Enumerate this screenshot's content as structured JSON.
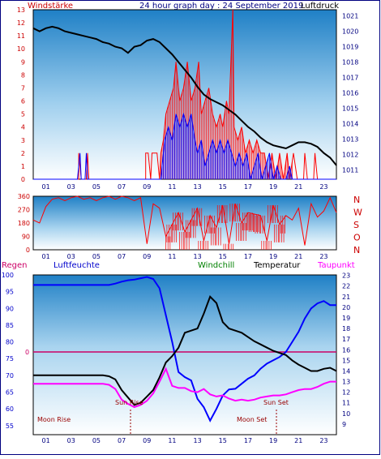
{
  "header": {
    "left_label": "Windstärke",
    "title": "24 hour graph day : 24 September 2019",
    "right_label": "Luftdruck"
  },
  "legend": {
    "regen": "Regen",
    "luftfeuchte": "Luftfeuchte",
    "windchill": "Windchill",
    "temperatur": "Temperatur",
    "taupunkt": "Taupunkt"
  },
  "markers": {
    "sunrise": "Sun Rise",
    "sunset": "Sun Set",
    "moonrise": "Moon Rise",
    "moonset": "Moon Set",
    "regen_zero": "0"
  },
  "colors": {
    "pressure": "#000000",
    "wind_gust": "#ff0000",
    "wind_speed": "#0000ff",
    "direction": "#ff0000",
    "temperature": "#000000",
    "humidity": "#0000ff",
    "dewpoint": "#ff00ff",
    "rain": "#cc0066",
    "label_red": "#cc0000",
    "label_green": "#008000",
    "label_blue": "#0000cc"
  },
  "chart_data": [
    {
      "type": "line",
      "name": "wind-pressure",
      "x_ticks": [
        "01",
        "03",
        "05",
        "07",
        "09",
        "11",
        "13",
        "15",
        "17",
        "19",
        "21",
        "23"
      ],
      "y_left_label": "Windstärke",
      "y_left_ticks": [
        "0",
        "1",
        "2",
        "3",
        "4",
        "5",
        "6",
        "7",
        "8",
        "9",
        "10",
        "11",
        "12",
        "13"
      ],
      "ylim_left": [
        0,
        13
      ],
      "y_right_label": "Luftdruck",
      "y_right_ticks": [
        "1011",
        "1012",
        "1013",
        "1014",
        "1015",
        "1016",
        "1017",
        "1018",
        "1019",
        "1020",
        "1021"
      ],
      "ylim_right": [
        1010.4,
        1021.4
      ],
      "pressure": {
        "x": [
          0,
          0.5,
          1,
          1.5,
          2,
          2.5,
          3,
          3.5,
          4,
          4.5,
          5,
          5.5,
          6,
          6.5,
          7,
          7.5,
          8,
          8.5,
          9,
          9.5,
          10,
          10.5,
          11,
          11.5,
          12,
          12.5,
          13,
          13.5,
          14,
          14.5,
          15,
          15.5,
          16,
          16.5,
          17,
          17.5,
          18,
          18.5,
          19,
          19.5,
          20,
          20.5,
          21,
          21.5,
          22,
          22.5,
          23,
          23.5,
          24
        ],
        "y": [
          1020.2,
          1020.0,
          1020.2,
          1020.3,
          1020.2,
          1020.0,
          1019.9,
          1019.8,
          1019.7,
          1019.6,
          1019.5,
          1019.3,
          1019.2,
          1019.0,
          1018.9,
          1018.6,
          1019.0,
          1019.1,
          1019.4,
          1019.5,
          1019.3,
          1018.9,
          1018.5,
          1018.0,
          1017.5,
          1017.0,
          1016.4,
          1015.9,
          1015.6,
          1015.4,
          1015.2,
          1014.9,
          1014.6,
          1014.2,
          1013.8,
          1013.5,
          1013.1,
          1012.8,
          1012.6,
          1012.5,
          1012.4,
          1012.6,
          1012.8,
          1012.8,
          1012.7,
          1012.5,
          1012.1,
          1011.8,
          1011.3
        ]
      },
      "wind_gust_envelope": [
        [
          0,
          0
        ],
        [
          3.6,
          0
        ],
        [
          3.6,
          2
        ],
        [
          3.8,
          0
        ],
        [
          4.2,
          0
        ],
        [
          4.3,
          2
        ],
        [
          4.4,
          0
        ],
        [
          8.9,
          0
        ],
        [
          8.9,
          2
        ],
        [
          9.1,
          2
        ],
        [
          9.3,
          0
        ],
        [
          9.4,
          2
        ],
        [
          9.8,
          2
        ],
        [
          10.0,
          0
        ],
        [
          10.1,
          2
        ],
        [
          10.3,
          3
        ],
        [
          10.5,
          5
        ],
        [
          10.8,
          6
        ],
        [
          11.1,
          7
        ],
        [
          11.3,
          9
        ],
        [
          11.6,
          6
        ],
        [
          11.9,
          7
        ],
        [
          12.2,
          9
        ],
        [
          12.5,
          6
        ],
        [
          12.8,
          7
        ],
        [
          13.1,
          9
        ],
        [
          13.3,
          5
        ],
        [
          13.6,
          6
        ],
        [
          13.9,
          7
        ],
        [
          14.2,
          5
        ],
        [
          14.5,
          4
        ],
        [
          14.8,
          5
        ],
        [
          15.0,
          4
        ],
        [
          15.3,
          6
        ],
        [
          15.5,
          5
        ],
        [
          15.8,
          13
        ],
        [
          15.9,
          4
        ],
        [
          16.2,
          3
        ],
        [
          16.5,
          4
        ],
        [
          16.8,
          2
        ],
        [
          17.1,
          3
        ],
        [
          17.4,
          2
        ],
        [
          17.7,
          3
        ],
        [
          18.0,
          2
        ],
        [
          18.3,
          2
        ],
        [
          18.6,
          0
        ],
        [
          18.9,
          2
        ],
        [
          19.2,
          0
        ],
        [
          19.5,
          2
        ],
        [
          19.8,
          0
        ],
        [
          20.1,
          2
        ],
        [
          20.3,
          0
        ],
        [
          20.6,
          2
        ],
        [
          20.9,
          0
        ],
        [
          21.4,
          0
        ],
        [
          21.5,
          2
        ],
        [
          21.7,
          0
        ],
        [
          22.2,
          0
        ],
        [
          22.3,
          2
        ],
        [
          22.5,
          0
        ],
        [
          24,
          0
        ]
      ],
      "wind_speed_envelope": [
        [
          0,
          0
        ],
        [
          3.5,
          0
        ],
        [
          3.6,
          1
        ],
        [
          3.7,
          2
        ],
        [
          3.8,
          0
        ],
        [
          4.1,
          0
        ],
        [
          4.2,
          2
        ],
        [
          4.3,
          0
        ],
        [
          10.1,
          0
        ],
        [
          10.2,
          1
        ],
        [
          10.4,
          3
        ],
        [
          10.7,
          4
        ],
        [
          11.0,
          3
        ],
        [
          11.3,
          5
        ],
        [
          11.6,
          4
        ],
        [
          11.9,
          5
        ],
        [
          12.2,
          4
        ],
        [
          12.5,
          5
        ],
        [
          12.8,
          3
        ],
        [
          13.0,
          2
        ],
        [
          13.3,
          3
        ],
        [
          13.6,
          1
        ],
        [
          13.9,
          2
        ],
        [
          14.2,
          3
        ],
        [
          14.5,
          2
        ],
        [
          14.8,
          3
        ],
        [
          15.1,
          2
        ],
        [
          15.4,
          3
        ],
        [
          15.7,
          2
        ],
        [
          16.0,
          1
        ],
        [
          16.3,
          2
        ],
        [
          16.6,
          1
        ],
        [
          16.9,
          2
        ],
        [
          17.2,
          0
        ],
        [
          17.5,
          1
        ],
        [
          17.8,
          2
        ],
        [
          18.1,
          0
        ],
        [
          18.4,
          1
        ],
        [
          18.7,
          2
        ],
        [
          19.0,
          0
        ],
        [
          19.3,
          1
        ],
        [
          19.6,
          0
        ],
        [
          20.0,
          0
        ],
        [
          20.3,
          1
        ],
        [
          20.5,
          0
        ],
        [
          24,
          0
        ]
      ]
    },
    {
      "type": "line",
      "name": "wind-direction",
      "x_ticks": [
        "01",
        "03",
        "05",
        "07",
        "09",
        "11",
        "13",
        "15",
        "17",
        "19",
        "21",
        "23"
      ],
      "y_left_ticks": [
        "0",
        "90",
        "180",
        "270",
        "360"
      ],
      "y_right_ticks": [
        "N",
        "W",
        "S",
        "O",
        "N"
      ],
      "ylim": [
        0,
        360
      ],
      "direction": {
        "x": [
          0,
          0.5,
          1,
          1.5,
          2,
          2.5,
          3,
          3.5,
          4,
          4.5,
          5,
          5.5,
          6,
          6.5,
          7,
          7.5,
          8,
          8.5,
          9,
          9.5,
          10,
          10.5,
          11,
          11.5,
          12,
          12.5,
          13,
          13.5,
          14,
          14.5,
          15,
          15.5,
          16,
          16.5,
          17,
          17.5,
          18,
          18.5,
          19,
          19.5,
          20,
          20.5,
          21,
          21.5,
          22,
          22.5,
          23,
          23.5,
          24
        ],
        "y": [
          200,
          180,
          290,
          340,
          350,
          330,
          350,
          360,
          340,
          350,
          330,
          350,
          360,
          340,
          360,
          350,
          330,
          350,
          40,
          310,
          280,
          90,
          170,
          250,
          120,
          200,
          280,
          60,
          230,
          150,
          300,
          40,
          310,
          180,
          250,
          240,
          230,
          60,
          300,
          170,
          230,
          200,
          280,
          30,
          310,
          220,
          260,
          350,
          250
        ]
      }
    },
    {
      "type": "line",
      "name": "temperature-humidity",
      "x_ticks": [
        "01",
        "03",
        "05",
        "07",
        "09",
        "11",
        "13",
        "15",
        "17",
        "19",
        "21",
        "23"
      ],
      "y_left_ticks": [
        "55",
        "60",
        "65",
        "70",
        "75",
        "80",
        "85",
        "90",
        "95",
        "100"
      ],
      "ylim_left": [
        52.3,
        100
      ],
      "y_right_ticks": [
        "9",
        "10",
        "11",
        "12",
        "13",
        "14",
        "15",
        "16",
        "17",
        "18",
        "19",
        "20",
        "21",
        "22",
        "23"
      ],
      "ylim_right": [
        8.0,
        23.05
      ],
      "rain_axis_label": "0",
      "rain_value": 0,
      "temperature": {
        "x": [
          0,
          0.5,
          1,
          1.5,
          2,
          2.5,
          3,
          3.5,
          4,
          4.5,
          5,
          5.5,
          6,
          6.5,
          7,
          7.5,
          8,
          8.5,
          9,
          9.5,
          10,
          10.5,
          11,
          11.5,
          12,
          12.5,
          13,
          13.5,
          14,
          14.5,
          15,
          15.5,
          16,
          16.5,
          17,
          17.5,
          18,
          18.5,
          19,
          19.5,
          20,
          20.5,
          21,
          21.5,
          22,
          22.5,
          23,
          23.5,
          24
        ],
        "y": [
          13.6,
          13.6,
          13.6,
          13.6,
          13.6,
          13.6,
          13.6,
          13.6,
          13.6,
          13.6,
          13.6,
          13.6,
          13.5,
          13.2,
          12.2,
          11.5,
          10.8,
          11.0,
          11.6,
          12.2,
          13.4,
          14.8,
          15.4,
          16.2,
          17.6,
          17.8,
          18.0,
          19.4,
          21.0,
          20.4,
          18.6,
          18.0,
          17.8,
          17.6,
          17.2,
          16.8,
          16.5,
          16.2,
          15.9,
          15.7,
          15.5,
          15.0,
          14.6,
          14.3,
          14.0,
          14.0,
          14.2,
          14.3,
          14.0
        ]
      },
      "humidity": {
        "x": [
          0,
          0.5,
          1,
          1.5,
          2,
          2.5,
          3,
          3.5,
          4,
          4.5,
          5,
          5.5,
          6,
          6.5,
          7,
          7.5,
          8,
          8.5,
          9,
          9.5,
          10,
          10.5,
          11,
          11.5,
          12,
          12.5,
          13,
          13.5,
          14,
          14.5,
          15,
          15.5,
          16,
          16.5,
          17,
          17.5,
          18,
          18.5,
          19,
          19.5,
          20,
          20.5,
          21,
          21.5,
          22,
          22.5,
          23,
          23.5,
          24
        ],
        "y": [
          97,
          97,
          97,
          97,
          97,
          97,
          97,
          97,
          97,
          97,
          97,
          97,
          97,
          97.4,
          98,
          98.4,
          98.6,
          99,
          99.4,
          98.8,
          96.0,
          88.0,
          80.0,
          71.0,
          69.5,
          68.5,
          63.0,
          60.5,
          56.5,
          60.0,
          64.0,
          65.8,
          66.0,
          67.5,
          69.0,
          70.0,
          72.0,
          73.5,
          74.5,
          75.5,
          77.0,
          80.0,
          83.0,
          87.0,
          90.0,
          91.5,
          92.2,
          91.0,
          91.0
        ]
      },
      "dewpoint": {
        "x": [
          0,
          0.5,
          1,
          1.5,
          2,
          2.5,
          3,
          3.5,
          4,
          4.5,
          5,
          5.5,
          6,
          6.5,
          7,
          7.5,
          8,
          8.5,
          9,
          9.5,
          10,
          10.5,
          11,
          11.5,
          12,
          12.5,
          13,
          13.5,
          14,
          14.5,
          15,
          15.5,
          16,
          16.5,
          17,
          17.5,
          18,
          18.5,
          19,
          19.5,
          20,
          20.5,
          21,
          21.5,
          22,
          22.5,
          23,
          23.5,
          24
        ],
        "y": [
          12.8,
          12.8,
          12.8,
          12.8,
          12.8,
          12.8,
          12.8,
          12.8,
          12.8,
          12.8,
          12.8,
          12.8,
          12.7,
          12.3,
          11.3,
          10.9,
          10.6,
          10.8,
          11.2,
          11.9,
          13.0,
          14.2,
          12.6,
          12.4,
          12.4,
          12.1,
          12.0,
          12.3,
          11.8,
          11.6,
          11.7,
          11.4,
          11.2,
          11.3,
          11.2,
          11.3,
          11.5,
          11.6,
          11.7,
          11.7,
          11.8,
          12.0,
          12.2,
          12.3,
          12.3,
          12.5,
          12.8,
          13.0,
          13.0
        ]
      }
    }
  ]
}
